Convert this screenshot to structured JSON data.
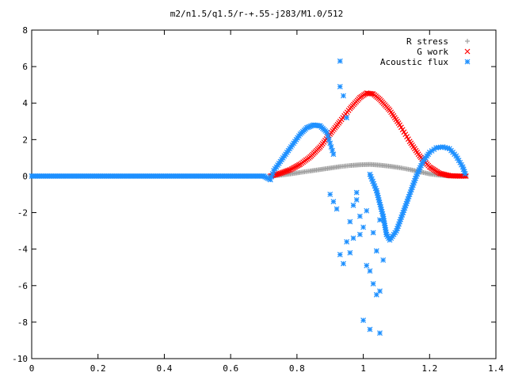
{
  "chart_data": {
    "type": "scatter",
    "title": "m2/n1.5/q1.5/r-+.55-j283/M1.0/512",
    "xlabel": "",
    "ylabel": "",
    "xlim": [
      0,
      1.4
    ],
    "ylim": [
      -10,
      8
    ],
    "x_ticks": [
      0,
      0.2,
      0.4,
      0.6,
      0.8,
      1,
      1.2,
      1.4
    ],
    "x_tick_labels": [
      "0",
      "0.2",
      "0.4",
      "0.6",
      "0.8",
      "1",
      "1.2",
      "1.4"
    ],
    "y_ticks": [
      -10,
      -8,
      -6,
      -4,
      -2,
      0,
      2,
      4,
      6,
      8
    ],
    "y_tick_labels": [
      "-10",
      "-8",
      "-6",
      "-4",
      "-2",
      "0",
      "2",
      "4",
      "6",
      "8"
    ],
    "grid": false,
    "legend_position": "top-right",
    "series": [
      {
        "name": "R stress",
        "color": "#a0a0a0",
        "marker": "plus",
        "points": [
          [
            0.72,
            0.0
          ],
          [
            0.75,
            0.05
          ],
          [
            0.78,
            0.12
          ],
          [
            0.81,
            0.2
          ],
          [
            0.84,
            0.28
          ],
          [
            0.87,
            0.36
          ],
          [
            0.9,
            0.44
          ],
          [
            0.93,
            0.52
          ],
          [
            0.96,
            0.58
          ],
          [
            0.99,
            0.62
          ],
          [
            1.02,
            0.64
          ],
          [
            1.05,
            0.6
          ],
          [
            1.08,
            0.54
          ],
          [
            1.11,
            0.46
          ],
          [
            1.14,
            0.36
          ],
          [
            1.17,
            0.24
          ],
          [
            1.2,
            0.12
          ],
          [
            1.23,
            0.05
          ],
          [
            1.26,
            0.01
          ],
          [
            1.29,
            0.0
          ],
          [
            1.31,
            0.0
          ]
        ]
      },
      {
        "name": "G work",
        "color": "#ff0000",
        "marker": "x",
        "points": [
          [
            0.72,
            0.0
          ],
          [
            0.75,
            0.15
          ],
          [
            0.78,
            0.35
          ],
          [
            0.81,
            0.65
          ],
          [
            0.84,
            1.05
          ],
          [
            0.87,
            1.6
          ],
          [
            0.9,
            2.3
          ],
          [
            0.93,
            3.0
          ],
          [
            0.96,
            3.7
          ],
          [
            0.99,
            4.3
          ],
          [
            1.01,
            4.55
          ],
          [
            1.03,
            4.5
          ],
          [
            1.05,
            4.2
          ],
          [
            1.08,
            3.6
          ],
          [
            1.11,
            2.8
          ],
          [
            1.14,
            1.9
          ],
          [
            1.17,
            1.1
          ],
          [
            1.2,
            0.5
          ],
          [
            1.23,
            0.15
          ],
          [
            1.26,
            0.02
          ],
          [
            1.29,
            0.0
          ],
          [
            1.31,
            0.0
          ]
        ]
      },
      {
        "name": "Acoustic flux",
        "color": "#1e90ff",
        "marker": "star",
        "points": [
          [
            0.0,
            0.0
          ],
          [
            0.05,
            0.0
          ],
          [
            0.1,
            0.0
          ],
          [
            0.15,
            0.0
          ],
          [
            0.2,
            0.0
          ],
          [
            0.25,
            0.0
          ],
          [
            0.3,
            0.0
          ],
          [
            0.35,
            0.0
          ],
          [
            0.4,
            0.0
          ],
          [
            0.45,
            0.0
          ],
          [
            0.5,
            0.0
          ],
          [
            0.55,
            0.0
          ],
          [
            0.6,
            0.0
          ],
          [
            0.65,
            0.0
          ],
          [
            0.7,
            0.0
          ],
          [
            0.72,
            -0.2
          ],
          [
            0.73,
            0.3
          ],
          [
            0.75,
            0.8
          ],
          [
            0.77,
            1.3
          ],
          [
            0.79,
            1.8
          ],
          [
            0.81,
            2.3
          ],
          [
            0.83,
            2.65
          ],
          [
            0.85,
            2.8
          ],
          [
            0.87,
            2.75
          ],
          [
            0.89,
            2.4
          ],
          [
            0.9,
            1.8
          ],
          [
            0.91,
            1.2
          ],
          [
            1.0,
            0.6
          ],
          [
            1.02,
            0.1
          ],
          [
            1.04,
            -0.8
          ],
          [
            1.06,
            -2.2
          ],
          [
            1.07,
            -3.2
          ],
          [
            1.08,
            -3.5
          ],
          [
            1.1,
            -3.0
          ],
          [
            1.12,
            -2.0
          ],
          [
            1.14,
            -1.0
          ],
          [
            1.16,
            0.0
          ],
          [
            1.18,
            0.8
          ],
          [
            1.2,
            1.3
          ],
          [
            1.22,
            1.55
          ],
          [
            1.24,
            1.6
          ],
          [
            1.26,
            1.5
          ],
          [
            1.28,
            1.1
          ],
          [
            1.3,
            0.5
          ],
          [
            1.31,
            0.0
          ],
          [
            0.9,
            -1.0
          ],
          [
            0.91,
            -1.4
          ],
          [
            0.92,
            -1.8
          ],
          [
            0.93,
            -4.3
          ],
          [
            0.94,
            -4.8
          ],
          [
            0.95,
            -3.6
          ],
          [
            0.96,
            -2.5
          ],
          [
            0.97,
            -1.6
          ],
          [
            0.98,
            -0.9
          ],
          [
            0.99,
            -2.2
          ],
          [
            1.0,
            -2.8
          ],
          [
            1.01,
            -4.9
          ],
          [
            1.02,
            -5.2
          ],
          [
            1.03,
            -5.9
          ],
          [
            1.04,
            -6.5
          ],
          [
            1.05,
            -6.3
          ],
          [
            1.06,
            -4.6
          ],
          [
            1.0,
            -7.9
          ],
          [
            1.02,
            -8.4
          ],
          [
            1.05,
            -8.6
          ],
          [
            0.93,
            6.3
          ],
          [
            0.93,
            4.9
          ],
          [
            0.94,
            4.4
          ],
          [
            0.95,
            3.2
          ],
          [
            0.96,
            0.8
          ],
          [
            0.97,
            0.4
          ],
          [
            0.98,
            0.3
          ],
          [
            0.99,
            -0.4
          ],
          [
            1.01,
            -1.9
          ],
          [
            1.03,
            -3.1
          ],
          [
            1.04,
            -4.1
          ],
          [
            1.05,
            -2.4
          ],
          [
            0.96,
            -4.2
          ],
          [
            0.97,
            -3.4
          ],
          [
            0.98,
            -1.3
          ],
          [
            0.99,
            -3.2
          ]
        ]
      }
    ]
  }
}
